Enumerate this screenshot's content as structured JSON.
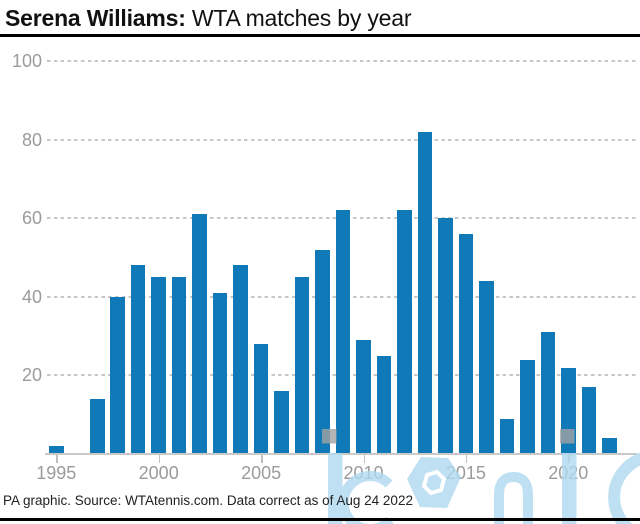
{
  "title": {
    "bold": "Serena Williams:",
    "rest": " WTA matches by year"
  },
  "footer": "PA graphic. Source: WTAtennis.com. Data correct as of Aug 24 2022",
  "watermark_text": "iconic",
  "colors": {
    "bar": "#1079b8",
    "grid": "#c7c7c7",
    "axis_text": "#9b9b9b",
    "rule": "#000000",
    "watermark": "#aed9ef",
    "watermark_dot": "#a3a3a3"
  },
  "chart_data": {
    "type": "bar",
    "title": "Serena Williams: WTA matches by year",
    "xlabel": "",
    "ylabel": "",
    "x": [
      1995,
      1996,
      1997,
      1998,
      1999,
      2000,
      2001,
      2002,
      2003,
      2004,
      2005,
      2006,
      2007,
      2008,
      2009,
      2010,
      2011,
      2012,
      2013,
      2014,
      2015,
      2016,
      2017,
      2018,
      2019,
      2020,
      2021,
      2022
    ],
    "values": [
      2,
      0,
      14,
      40,
      48,
      45,
      45,
      61,
      41,
      48,
      28,
      16,
      45,
      52,
      62,
      29,
      25,
      62,
      82,
      60,
      56,
      44,
      9,
      24,
      31,
      22,
      17,
      4
    ],
    "ylim": [
      0,
      100
    ],
    "yticks": [
      20,
      40,
      60,
      80,
      100
    ],
    "xticks": [
      1995,
      2000,
      2005,
      2010,
      2015,
      2020
    ],
    "grid": "horizontal-dashed",
    "legend": "none"
  }
}
